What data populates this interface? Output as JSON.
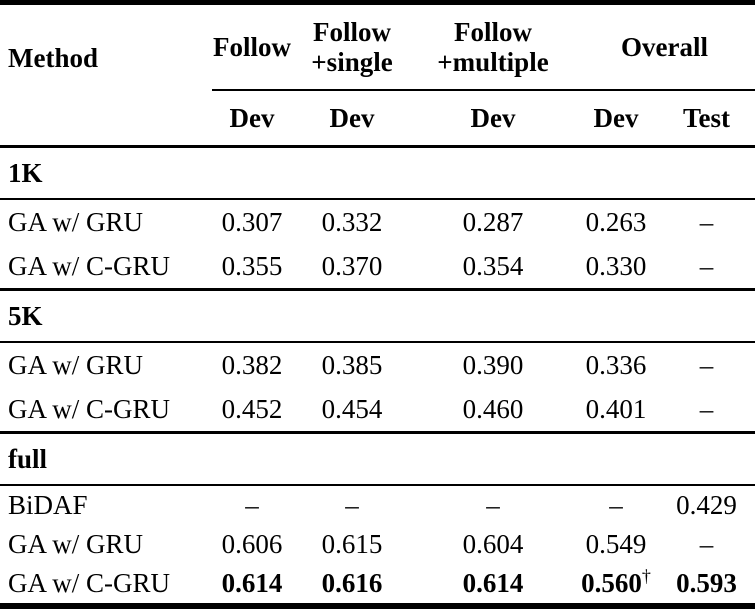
{
  "table": {
    "header": {
      "method": "Method",
      "follow": "Follow",
      "follow_single": [
        "Follow",
        "+single"
      ],
      "follow_multiple": [
        "Follow",
        "+multiple"
      ],
      "overall": "Overall",
      "subs": [
        "Dev",
        "Dev",
        "Dev",
        "Dev",
        "Test"
      ]
    },
    "sections": [
      {
        "label": "1K",
        "rows": [
          {
            "method": "GA w/ GRU",
            "values": [
              "0.307",
              "0.332",
              "0.287",
              "0.263",
              "–"
            ]
          },
          {
            "method": "GA w/ C-GRU",
            "values": [
              "0.355",
              "0.370",
              "0.354",
              "0.330",
              "–"
            ]
          }
        ]
      },
      {
        "label": "5K",
        "rows": [
          {
            "method": "GA w/ GRU",
            "values": [
              "0.382",
              "0.385",
              "0.390",
              "0.336",
              "–"
            ]
          },
          {
            "method": "GA w/ C-GRU",
            "values": [
              "0.452",
              "0.454",
              "0.460",
              "0.401",
              "–"
            ]
          }
        ]
      },
      {
        "label": "full",
        "rows": [
          {
            "method": "BiDAF",
            "values": [
              "–",
              "–",
              "–",
              "–",
              "0.429"
            ]
          },
          {
            "method": "GA w/ GRU",
            "values": [
              "0.606",
              "0.615",
              "0.604",
              "0.549",
              "–"
            ]
          },
          {
            "method": "GA w/ C-GRU",
            "values": [
              "0.614",
              "0.616",
              "0.614",
              "0.560",
              "0.593"
            ],
            "note": "†"
          }
        ]
      }
    ]
  }
}
